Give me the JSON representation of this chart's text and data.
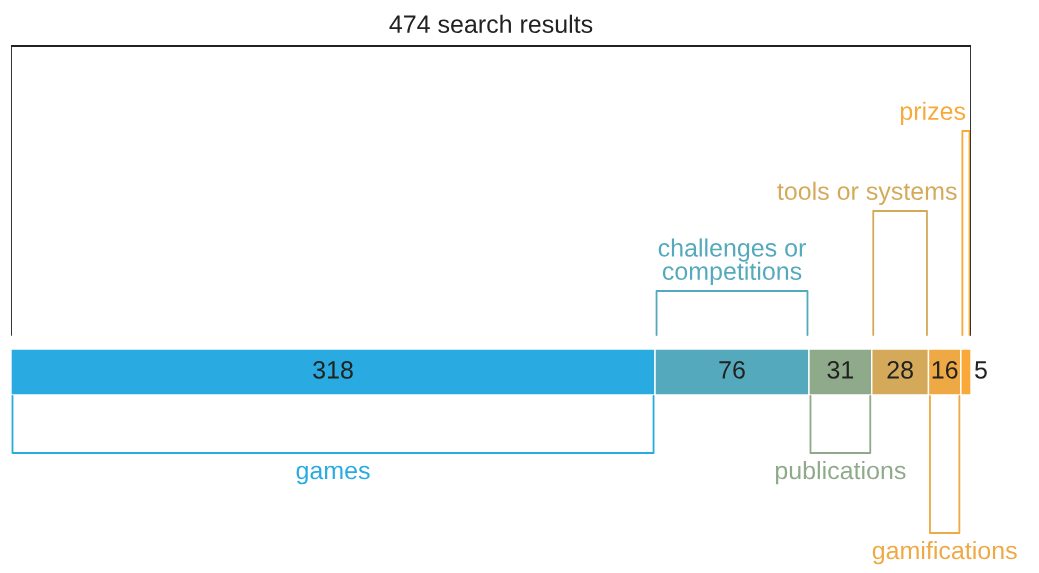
{
  "chart_data": {
    "type": "bar",
    "orientation": "horizontal",
    "stacked": true,
    "data_labels": true,
    "categories": [
      null
    ],
    "series": [
      {
        "name": "games",
        "color": "#29aae1",
        "values": [
          318
        ]
      },
      {
        "name": "challenges or\ncompetitions",
        "color": "#55a9bd",
        "values": [
          76
        ]
      },
      {
        "name": "publications",
        "color": "#8faa8a",
        "values": [
          31
        ]
      },
      {
        "name": "tools or systems",
        "color": "#d4a95a",
        "values": [
          28
        ]
      },
      {
        "name": "gamifications",
        "color": "#eea844",
        "values": [
          16
        ]
      },
      {
        "name": "prizes",
        "color": "#f9a93a",
        "values": [
          5
        ]
      }
    ],
    "annotations": [
      "474 search results"
    ]
  }
}
